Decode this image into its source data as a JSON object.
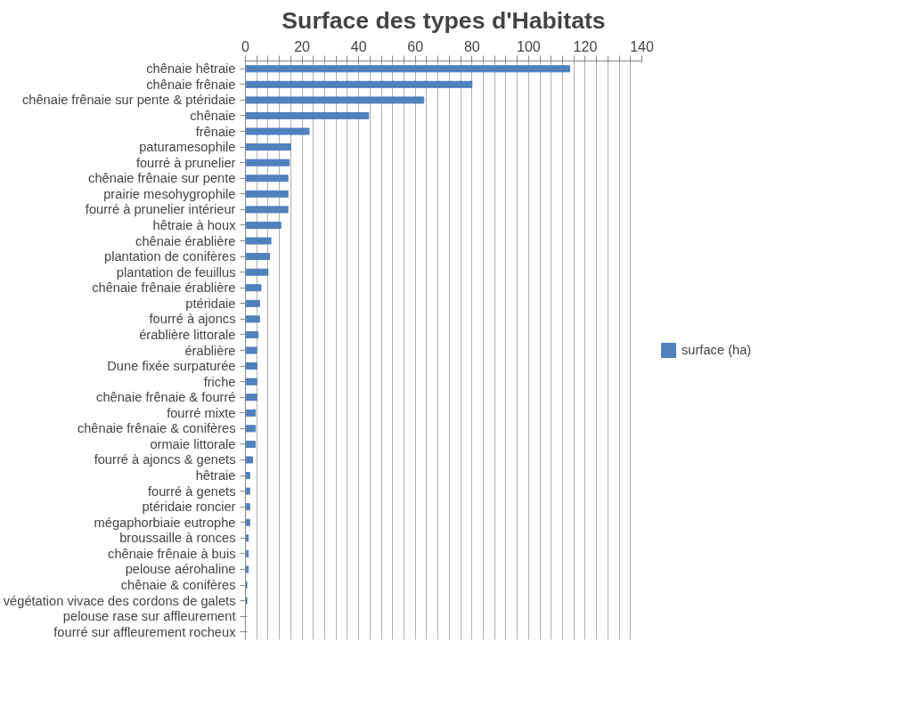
{
  "chart_data": {
    "type": "bar",
    "orientation": "horizontal",
    "title": "Surface des types d'Habitats",
    "categories": [
      "chênaie hêtraie",
      "chênaie frênaie",
      "chênaie frênaie sur pente & ptéridaie",
      "chênaie",
      "frênaie",
      "paturamesophile",
      "fourré à prunelier",
      "chênaie frênaie sur pente",
      "prairie mesohygrophile",
      "fourré à prunelier intérieur",
      "hêtraie à houx",
      "chênaie érablière",
      "plantation de conifères",
      "plantation de feuillus",
      "chênaie frênaie érablière",
      "ptéridaie",
      "fourré à ajoncs",
      "érablière littorale",
      "érablière",
      "Dune fixée surpaturée",
      "friche",
      "chênaie frênaie & fourré",
      "fourré mixte",
      "chênaie frênaie & conifères",
      "ormaie littorale",
      "fourré à ajoncs & genets",
      "hêtraie",
      "fourré à genets",
      "ptéridaie roncier",
      "mégaphorbiaie eutrophe",
      "broussaille à ronces",
      "chênaie frênaie à buis",
      "pelouse aérohaline",
      "chênaie & conifères",
      "végétation vivace des cordons de galets",
      "pelouse rase sur affleurement",
      "fourré sur affleurement rocheux"
    ],
    "series": [
      {
        "name": "surface (ha)",
        "color": "#4f81bd",
        "values": [
          114.5,
          80,
          63,
          43.5,
          22.5,
          16,
          15.5,
          15,
          15,
          15,
          12.5,
          9,
          8.5,
          8,
          5.5,
          5,
          5,
          4.5,
          4,
          4,
          4,
          4,
          3.5,
          3.5,
          3.5,
          2.5,
          1.5,
          1.5,
          1.5,
          1.5,
          1,
          1,
          1,
          0.5,
          0.5,
          0,
          0
        ]
      }
    ],
    "xlim": [
      0,
      140
    ],
    "xticks": [
      0,
      {
        "value": 4,
        "label": null
      },
      {
        "value": 8,
        "label": null
      },
      {
        "value": 12,
        "label": null
      },
      {
        "value": 16,
        "label": null
      },
      20,
      {
        "value": 24,
        "label": null
      },
      {
        "value": 28,
        "label": null
      },
      {
        "value": 32,
        "label": null
      },
      {
        "value": 36,
        "label": null
      },
      40,
      {
        "value": 44,
        "label": null
      },
      {
        "value": 48,
        "label": null
      },
      {
        "value": 52,
        "label": null
      },
      {
        "value": 56,
        "label": null
      },
      60,
      {
        "value": 64,
        "label": null
      },
      {
        "value": 68,
        "label": null
      },
      {
        "value": 72,
        "label": null
      },
      {
        "value": 76,
        "label": null
      },
      80,
      {
        "value": 84,
        "label": null
      },
      {
        "value": 88,
        "label": null
      },
      {
        "value": 92,
        "label": null
      },
      {
        "value": 96,
        "label": null
      },
      100,
      {
        "value": 104,
        "label": null
      },
      {
        "value": 108,
        "label": null
      },
      {
        "value": 112,
        "label": null
      },
      {
        "value": 116,
        "label": null
      },
      120,
      {
        "value": 124,
        "label": null
      },
      {
        "value": 128,
        "label": null
      },
      {
        "value": 132,
        "label": null
      },
      {
        "value": 136,
        "label": null
      },
      140
    ],
    "grid": "x",
    "legend": "right"
  }
}
